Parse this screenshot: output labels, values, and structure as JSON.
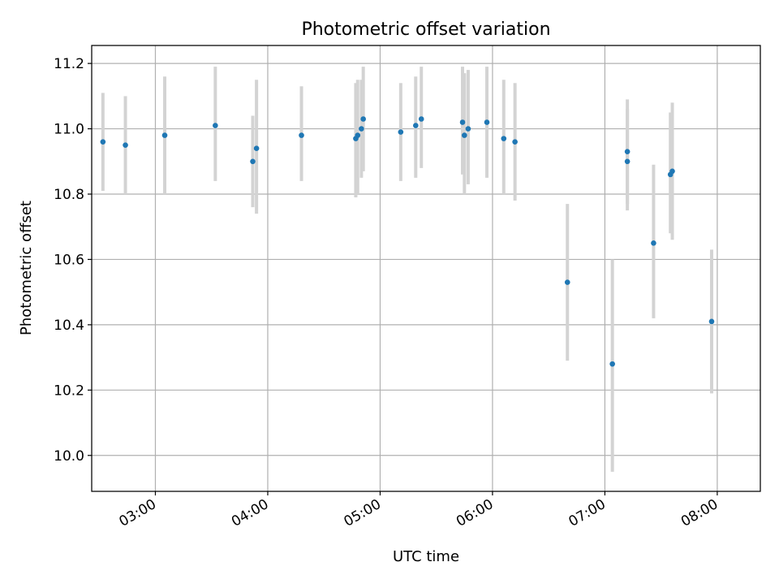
{
  "chart_data": {
    "type": "scatter",
    "title": "Photometric offset variation",
    "xlabel": "UTC time",
    "ylabel": "Photometric offset",
    "x_unit": "UTC time of day",
    "xlim": [
      "02:26",
      "08:23"
    ],
    "ylim": [
      9.89,
      11.255
    ],
    "x_ticks": [
      "03:00",
      "04:00",
      "05:00",
      "06:00",
      "07:00",
      "08:00"
    ],
    "y_ticks": [
      "10.0",
      "10.2",
      "10.4",
      "10.6",
      "10.8",
      "11.0",
      "11.2"
    ],
    "grid": true,
    "legend": false,
    "point_color": "#1f77b4",
    "errorbar_color": "#d3d3d3",
    "points": [
      {
        "x": "02:32",
        "y": 10.96,
        "ylow": 10.81,
        "yhigh": 11.11
      },
      {
        "x": "02:44",
        "y": 10.95,
        "ylow": 10.8,
        "yhigh": 11.1
      },
      {
        "x": "03:05",
        "y": 10.98,
        "ylow": 10.8,
        "yhigh": 11.16
      },
      {
        "x": "03:32",
        "y": 11.01,
        "ylow": 10.84,
        "yhigh": 11.19
      },
      {
        "x": "03:52",
        "y": 10.9,
        "ylow": 10.76,
        "yhigh": 11.04
      },
      {
        "x": "03:54",
        "y": 10.94,
        "ylow": 10.74,
        "yhigh": 11.15
      },
      {
        "x": "04:18",
        "y": 10.98,
        "ylow": 10.84,
        "yhigh": 11.13
      },
      {
        "x": "04:47",
        "y": 10.97,
        "ylow": 10.79,
        "yhigh": 11.14
      },
      {
        "x": "04:48",
        "y": 10.98,
        "ylow": 10.8,
        "yhigh": 11.15
      },
      {
        "x": "04:50",
        "y": 11.0,
        "ylow": 10.85,
        "yhigh": 11.15
      },
      {
        "x": "04:51",
        "y": 11.03,
        "ylow": 10.87,
        "yhigh": 11.19
      },
      {
        "x": "05:11",
        "y": 10.99,
        "ylow": 10.84,
        "yhigh": 11.14
      },
      {
        "x": "05:19",
        "y": 11.01,
        "ylow": 10.85,
        "yhigh": 11.16
      },
      {
        "x": "05:22",
        "y": 11.03,
        "ylow": 10.88,
        "yhigh": 11.19
      },
      {
        "x": "05:44",
        "y": 11.02,
        "ylow": 10.86,
        "yhigh": 11.19
      },
      {
        "x": "05:45",
        "y": 10.98,
        "ylow": 10.8,
        "yhigh": 11.17
      },
      {
        "x": "05:47",
        "y": 11.0,
        "ylow": 10.83,
        "yhigh": 11.18
      },
      {
        "x": "05:57",
        "y": 11.02,
        "ylow": 10.85,
        "yhigh": 11.19
      },
      {
        "x": "06:06",
        "y": 10.97,
        "ylow": 10.8,
        "yhigh": 11.15
      },
      {
        "x": "06:12",
        "y": 10.96,
        "ylow": 10.78,
        "yhigh": 11.14
      },
      {
        "x": "06:40",
        "y": 10.53,
        "ylow": 10.29,
        "yhigh": 10.77
      },
      {
        "x": "07:04",
        "y": 10.28,
        "ylow": 9.95,
        "yhigh": 10.6
      },
      {
        "x": "07:12",
        "y": 10.93,
        "ylow": 10.77,
        "yhigh": 11.09
      },
      {
        "x": "07:12",
        "y": 10.9,
        "ylow": 10.75,
        "yhigh": 11.06
      },
      {
        "x": "07:26",
        "y": 10.65,
        "ylow": 10.42,
        "yhigh": 10.89
      },
      {
        "x": "07:35",
        "y": 10.86,
        "ylow": 10.68,
        "yhigh": 11.05
      },
      {
        "x": "07:36",
        "y": 10.87,
        "ylow": 10.66,
        "yhigh": 11.08
      },
      {
        "x": "07:57",
        "y": 10.41,
        "ylow": 10.19,
        "yhigh": 10.63
      }
    ]
  }
}
